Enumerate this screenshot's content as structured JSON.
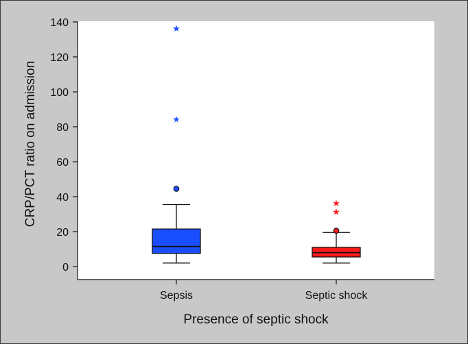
{
  "chart_data": {
    "type": "box",
    "xlabel": "Presence of septic shock",
    "ylabel": "CRP/PCT ratio on admission",
    "ylim": [
      0,
      140
    ],
    "yticks": [
      0,
      20,
      40,
      60,
      80,
      100,
      120,
      140
    ],
    "grid": false,
    "legend": "none",
    "categories": [
      "Sepsis",
      "Septic shock"
    ],
    "groups": [
      {
        "category": "Sepsis",
        "color": "#1a4fff",
        "whisker_low": 2,
        "q1": 7.5,
        "median": 11.5,
        "q3": 21.5,
        "whisker_high": 35.5,
        "outliers_circle": [
          44.5
        ],
        "outliers_star": [
          84.5,
          136.5
        ]
      },
      {
        "category": "Septic shock",
        "color": "#ff1a1a",
        "whisker_low": 2,
        "q1": 5.5,
        "median": 8,
        "q3": 11,
        "whisker_high": 19.5,
        "outliers_circle": [
          20.5
        ],
        "outliers_star": [
          31.5,
          36.5
        ]
      }
    ]
  }
}
